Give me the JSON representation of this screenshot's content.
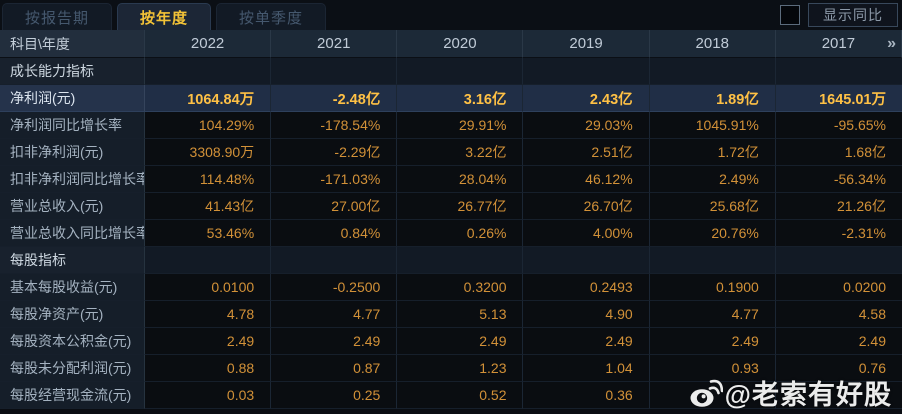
{
  "tabs": [
    {
      "label": "按报告期",
      "active": false
    },
    {
      "label": "按年度",
      "active": true
    },
    {
      "label": "按单季度",
      "active": false
    }
  ],
  "controls": {
    "yoy_checkbox_checked": false,
    "yoy_button_label": "显示同比",
    "more_years_chevron": "»"
  },
  "table": {
    "corner_header": "科目\\年度",
    "year_columns": [
      "2022",
      "2021",
      "2020",
      "2019",
      "2018",
      "2017"
    ],
    "rows": [
      {
        "type": "section",
        "label": "成长能力指标",
        "values": [
          "",
          "",
          "",
          "",
          "",
          ""
        ]
      },
      {
        "type": "highlight",
        "label": "净利润(元)",
        "values": [
          "1064.84万",
          "-2.48亿",
          "3.16亿",
          "2.43亿",
          "1.89亿",
          "1645.01万"
        ]
      },
      {
        "type": "data",
        "label": "净利润同比增长率",
        "values": [
          "104.29%",
          "-178.54%",
          "29.91%",
          "29.03%",
          "1045.91%",
          "-95.65%"
        ]
      },
      {
        "type": "data",
        "label": "扣非净利润(元)",
        "values": [
          "3308.90万",
          "-2.29亿",
          "3.22亿",
          "2.51亿",
          "1.72亿",
          "1.68亿"
        ]
      },
      {
        "type": "data",
        "label": "扣非净利润同比增长率",
        "values": [
          "114.48%",
          "-171.03%",
          "28.04%",
          "46.12%",
          "2.49%",
          "-56.34%"
        ]
      },
      {
        "type": "data",
        "label": "营业总收入(元)",
        "values": [
          "41.43亿",
          "27.00亿",
          "26.77亿",
          "26.70亿",
          "25.68亿",
          "21.26亿"
        ]
      },
      {
        "type": "data",
        "label": "营业总收入同比增长率",
        "values": [
          "53.46%",
          "0.84%",
          "0.26%",
          "4.00%",
          "20.76%",
          "-2.31%"
        ]
      },
      {
        "type": "section",
        "label": "每股指标",
        "values": [
          "",
          "",
          "",
          "",
          "",
          ""
        ]
      },
      {
        "type": "data",
        "label": "基本每股收益(元)",
        "values": [
          "0.0100",
          "-0.2500",
          "0.3200",
          "0.2493",
          "0.1900",
          "0.0200"
        ]
      },
      {
        "type": "data",
        "label": "每股净资产(元)",
        "values": [
          "4.78",
          "4.77",
          "5.13",
          "4.90",
          "4.77",
          "4.58"
        ]
      },
      {
        "type": "data",
        "label": "每股资本公积金(元)",
        "values": [
          "2.49",
          "2.49",
          "2.49",
          "2.49",
          "2.49",
          "2.49"
        ]
      },
      {
        "type": "data",
        "label": "每股未分配利润(元)",
        "values": [
          "0.88",
          "0.87",
          "1.23",
          "1.04",
          "0.93",
          "0.76"
        ]
      },
      {
        "type": "data",
        "label": "每股经营现金流(元)",
        "values": [
          "0.03",
          "0.25",
          "0.52",
          "0.36",
          "",
          ""
        ]
      }
    ]
  },
  "watermark": {
    "text": "@老索有好股",
    "icon": "weibo-icon"
  },
  "colors": {
    "accent_gold": "#f3c237",
    "value_orange": "#d29138",
    "highlight_value_gold": "#ffc145",
    "highlight_row_bg": "#202e46",
    "header_bg": "#1c2937",
    "page_bg": "#0a0d12"
  }
}
